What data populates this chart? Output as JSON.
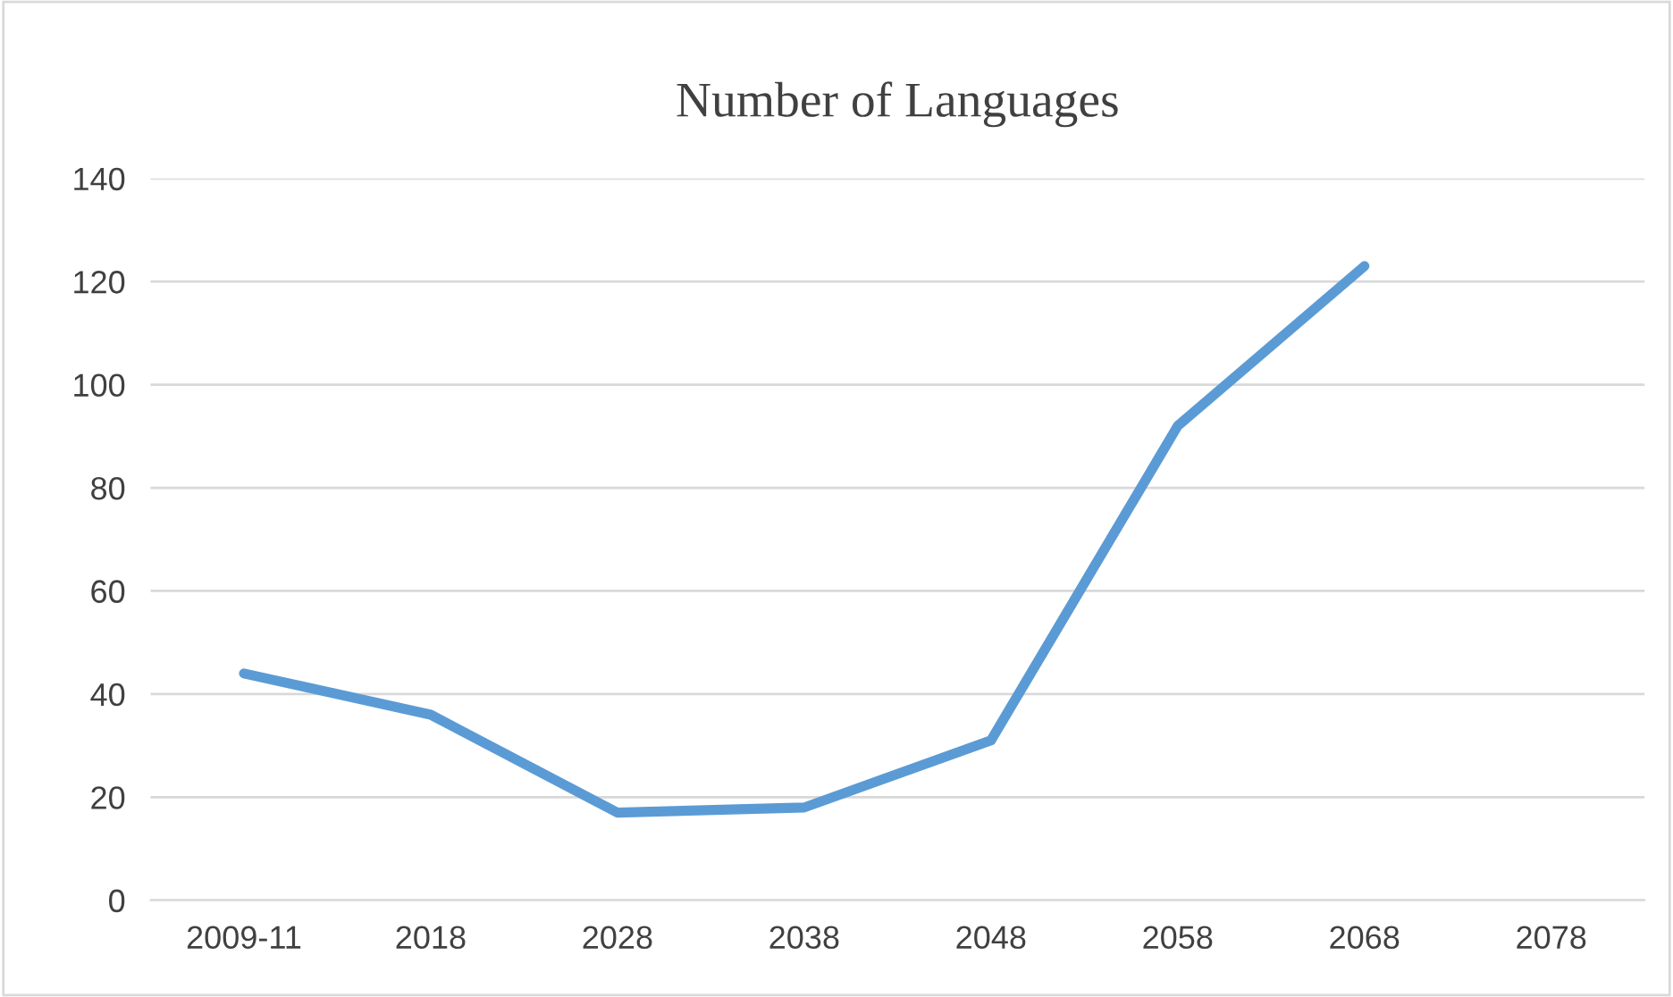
{
  "chart_data": {
    "type": "line",
    "title": "Number of Languages",
    "categories": [
      "2009-11",
      "2018",
      "2028",
      "2038",
      "2048",
      "2058",
      "2068",
      "2078"
    ],
    "series": [
      {
        "color": "#5b9bd5",
        "values": [
          44,
          36,
          17,
          18,
          31,
          92,
          123,
          null
        ]
      }
    ],
    "ylim": [
      0,
      140
    ],
    "yticks": [
      0,
      20,
      40,
      60,
      80,
      100,
      120,
      140
    ],
    "grid": "y",
    "legend": false,
    "marker": "none",
    "line_style": "solid"
  }
}
